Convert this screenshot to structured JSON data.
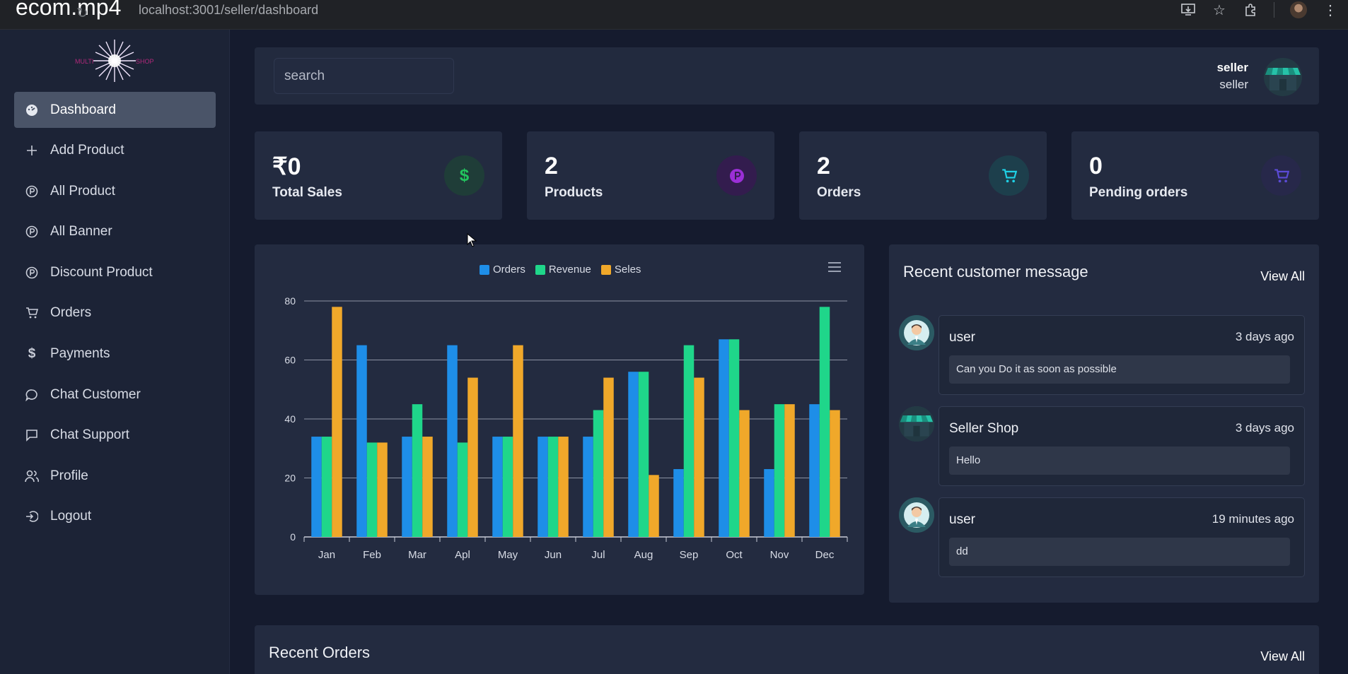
{
  "browser": {
    "video_title": "ecom.mp4",
    "url": "localhost:3001/seller/dashboard"
  },
  "sidebar": {
    "items": [
      {
        "label": "Dashboard",
        "icon": "dashboard-icon",
        "active": true
      },
      {
        "label": "Add Product",
        "icon": "plus-icon"
      },
      {
        "label": "All Product",
        "icon": "product-icon"
      },
      {
        "label": "All Banner",
        "icon": "banner-icon"
      },
      {
        "label": "Discount Product",
        "icon": "discount-icon"
      },
      {
        "label": "Orders",
        "icon": "cart-icon"
      },
      {
        "label": "Payments",
        "icon": "dollar-icon"
      },
      {
        "label": "Chat Customer",
        "icon": "chat-bubble-icon"
      },
      {
        "label": "Chat Support",
        "icon": "message-square-icon"
      },
      {
        "label": "Profile",
        "icon": "users-icon"
      },
      {
        "label": "Logout",
        "icon": "logout-icon"
      }
    ]
  },
  "header": {
    "search_placeholder": "search",
    "user_name": "seller",
    "user_role": "seller"
  },
  "stats": [
    {
      "value": "₹0",
      "label": "Total Sales",
      "icon": "dollar-icon",
      "icon_color": "#22c55e",
      "icon_bg": "#1f3d38"
    },
    {
      "value": "2",
      "label": "Products",
      "icon": "product-icon",
      "icon_color": "#9b2fd6",
      "icon_bg": "#331c4e"
    },
    {
      "value": "2",
      "label": "Orders",
      "icon": "cart-icon",
      "icon_color": "#1fd1e6",
      "icon_bg": "#1d3f4c"
    },
    {
      "value": "0",
      "label": "Pending orders",
      "icon": "cart-icon",
      "icon_color": "#5b4bd6",
      "icon_bg": "#27284a"
    }
  ],
  "chart_data": {
    "type": "bar",
    "categories": [
      "Jan",
      "Feb",
      "Mar",
      "Apl",
      "May",
      "Jun",
      "Jul",
      "Aug",
      "Sep",
      "Oct",
      "Nov",
      "Dec"
    ],
    "series": [
      {
        "name": "Orders",
        "color": "#1e8ee8",
        "values": [
          34,
          65,
          34,
          65,
          34,
          34,
          34,
          56,
          23,
          67,
          23,
          45
        ]
      },
      {
        "name": "Revenue",
        "color": "#1fd68a",
        "values": [
          34,
          32,
          45,
          32,
          34,
          34,
          43,
          56,
          65,
          67,
          45,
          78
        ]
      },
      {
        "name": "Seles",
        "color": "#f0a82a",
        "values": [
          78,
          32,
          34,
          54,
          65,
          34,
          54,
          21,
          54,
          43,
          45,
          43
        ]
      }
    ],
    "yticks": [
      0,
      20,
      40,
      60,
      80
    ],
    "ylim": [
      0,
      80
    ],
    "grid": true,
    "legend": "top-center"
  },
  "messages": {
    "title": "Recent customer message",
    "view_all": "View All",
    "items": [
      {
        "sender": "user",
        "time": "3 days ago",
        "text": "Can you Do it as soon as possible",
        "avatar": "user-avatar-icon"
      },
      {
        "sender": "Seller Shop",
        "time": "3 days ago",
        "text": "Hello",
        "avatar": "shop-avatar-icon"
      },
      {
        "sender": "user",
        "time": "19 minutes ago",
        "text": "dd",
        "avatar": "user-avatar-icon"
      }
    ]
  },
  "recent_orders": {
    "title": "Recent Orders",
    "view_all": "View All"
  }
}
